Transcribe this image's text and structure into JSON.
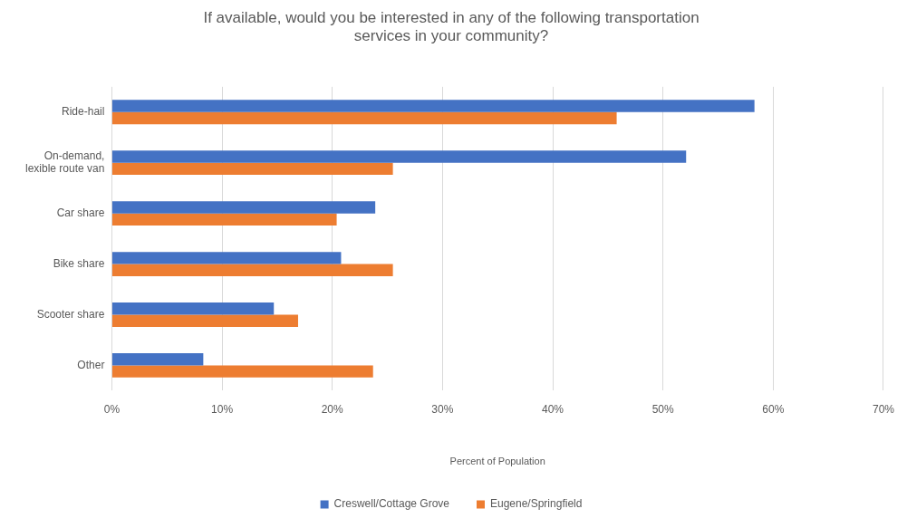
{
  "chart_data": {
    "type": "bar",
    "orientation": "horizontal",
    "title": "If available, would you be interested in any of the following transportation services in your community?",
    "xlabel": "Percent of Population",
    "categories": [
      "Ride-hail",
      "On-demand,\nlexible route van",
      "Car share",
      "Bike share",
      "Scooter share",
      "Other"
    ],
    "series": [
      {
        "name": "Creswell/Cottage Grove",
        "color": "#4472c4",
        "values": [
          58.3,
          52.1,
          23.9,
          20.8,
          14.7,
          8.3
        ]
      },
      {
        "name": "Eugene/Springfield",
        "color": "#ed7d31",
        "values": [
          45.8,
          25.5,
          20.4,
          25.5,
          16.9,
          23.7
        ]
      }
    ],
    "xlim": [
      0,
      70
    ],
    "xticks": [
      {
        "value": 0,
        "label": "0%"
      },
      {
        "value": 10,
        "label": "10%"
      },
      {
        "value": 20,
        "label": "20%"
      },
      {
        "value": 30,
        "label": "30%"
      },
      {
        "value": 40,
        "label": "40%"
      },
      {
        "value": 50,
        "label": "50%"
      },
      {
        "value": 60,
        "label": "60%"
      },
      {
        "value": 70,
        "label": "70%"
      }
    ],
    "grid": "x",
    "legend": "bottom"
  }
}
